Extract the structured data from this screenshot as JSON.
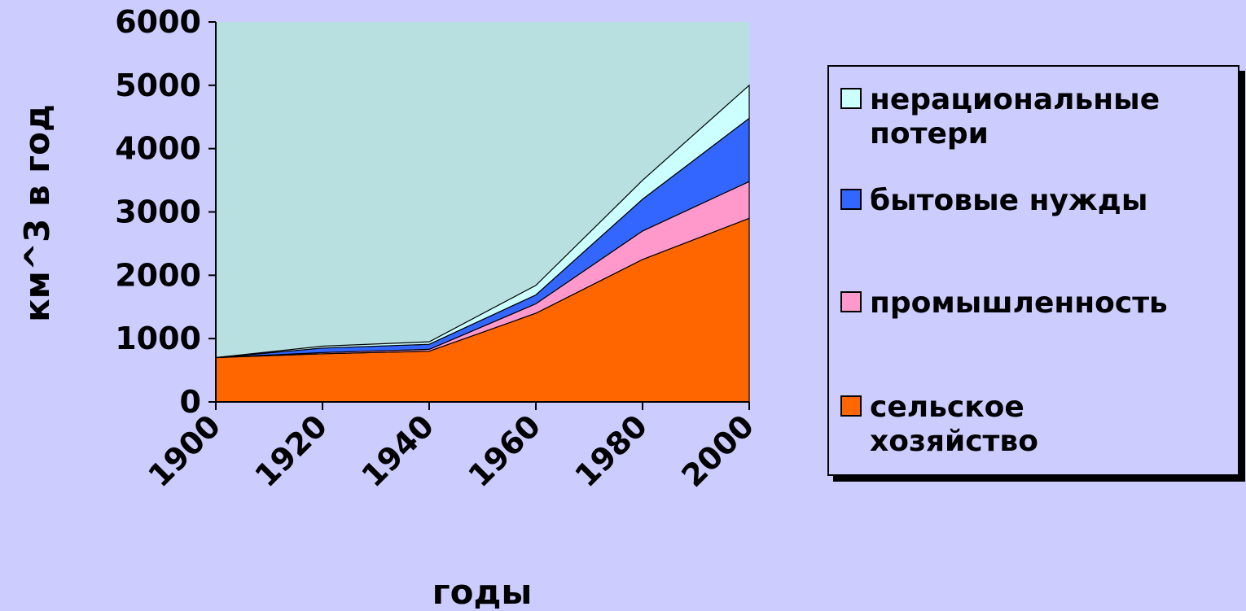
{
  "chart_data": {
    "type": "area",
    "stacked": true,
    "x": [
      1900,
      1920,
      1940,
      1960,
      1980,
      2000
    ],
    "x_tick_labels": [
      "1900",
      "1920",
      "1940",
      "1960",
      "1980",
      "2000"
    ],
    "ylim": [
      0,
      6000
    ],
    "y_ticks": [
      0,
      1000,
      2000,
      3000,
      4000,
      5000,
      6000
    ],
    "y_tick_labels": [
      "0",
      "1000",
      "2000",
      "3000",
      "4000",
      "5000",
      "6000"
    ],
    "xlabel": "годы",
    "ylabel": "км^3 в год",
    "plot_background": "#B8E0E0",
    "legend_position": "right",
    "series": [
      {
        "name": "сельское\nхозяйство",
        "color": "#FF6600",
        "values": [
          700,
          760,
          800,
          1400,
          2250,
          2900
        ]
      },
      {
        "name": "промышленность",
        "color": "#FF99CC",
        "values": [
          0,
          20,
          30,
          150,
          450,
          580
        ]
      },
      {
        "name": "бытовые нужды",
        "color": "#3366FF",
        "values": [
          0,
          70,
          80,
          140,
          500,
          1000
        ]
      },
      {
        "name": "нерациональные\nпотери",
        "color": "#CCFFFF",
        "values": [
          0,
          30,
          40,
          150,
          300,
          520
        ]
      }
    ]
  }
}
